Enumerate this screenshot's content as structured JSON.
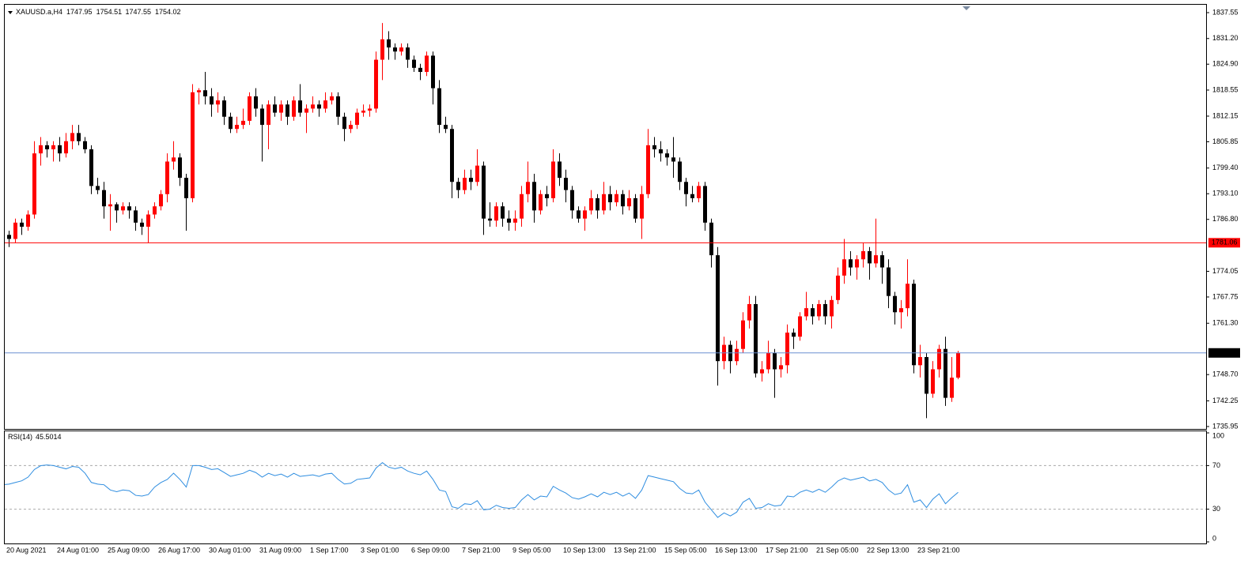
{
  "chart_data": {
    "type": "candlestick",
    "title": "XAUUSD.a,H4",
    "up_color": "#ff0000",
    "down_color": "#000000",
    "bid_color": "#6a8fd0",
    "ylim": [
      1735.36,
      1839.49
    ],
    "yticks": [
      {
        "value": 1837.55,
        "label": "1837.55"
      },
      {
        "value": 1831.2,
        "label": "1831.20"
      },
      {
        "value": 1824.9,
        "label": "1824.90"
      },
      {
        "value": 1818.55,
        "label": "1818.55"
      },
      {
        "value": 1812.15,
        "label": "1812.15"
      },
      {
        "value": 1805.85,
        "label": "1805.85"
      },
      {
        "value": 1799.4,
        "label": "1799.40"
      },
      {
        "value": 1793.1,
        "label": "1793.10"
      },
      {
        "value": 1786.8,
        "label": "1786.80"
      },
      {
        "value": 1774.05,
        "label": "1774.05"
      },
      {
        "value": 1767.75,
        "label": "1767.75"
      },
      {
        "value": 1761.3,
        "label": "1761.30"
      },
      {
        "value": 1748.7,
        "label": "1748.70"
      },
      {
        "value": 1742.25,
        "label": "1742.25"
      },
      {
        "value": 1735.95,
        "label": "1735.95"
      }
    ],
    "hlines": [
      {
        "value": 1781.06,
        "color": "#ff0000"
      }
    ],
    "categories": [
      null,
      "20 Aug 2021",
      null,
      null,
      null,
      null,
      null,
      null,
      null,
      "24 Aug 01:00",
      null,
      null,
      null,
      null,
      null,
      null,
      null,
      "25 Aug 09:00",
      null,
      null,
      null,
      null,
      null,
      null,
      null,
      "26 Aug 17:00",
      null,
      null,
      null,
      null,
      null,
      null,
      null,
      "30 Aug 01:00",
      null,
      null,
      null,
      null,
      null,
      null,
      null,
      "31 Aug 09:00",
      null,
      null,
      null,
      null,
      null,
      null,
      null,
      "1 Sep 17:00",
      null,
      null,
      null,
      null,
      null,
      null,
      null,
      "3 Sep 01:00",
      null,
      null,
      null,
      null,
      null,
      null,
      null,
      "6 Sep 09:00",
      null,
      null,
      null,
      null,
      null,
      null,
      null,
      "7 Sep 21:00",
      null,
      null,
      null,
      null,
      null,
      null,
      null,
      "9 Sep 05:00",
      null,
      null,
      null,
      null,
      null,
      null,
      null,
      "10 Sep 13:00",
      null,
      null,
      null,
      null,
      null,
      null,
      null,
      "13 Sep 21:00",
      null,
      null,
      null,
      null,
      null,
      null,
      null,
      "15 Sep 05:00",
      null,
      null,
      null,
      null,
      null,
      null,
      null,
      "16 Sep 13:00",
      null,
      null,
      null,
      null,
      null,
      null,
      null,
      "17 Sep 21:00",
      null,
      null,
      null,
      null,
      null,
      null,
      null,
      "21 Sep 05:00",
      null,
      null,
      null,
      null,
      null,
      null,
      null,
      "22 Sep 13:00",
      null,
      null,
      null,
      null,
      null,
      null,
      null,
      "23 Sep 21:00",
      null,
      null,
      null,
      null,
      null,
      null
    ],
    "ohlc": [
      [
        1779,
        1784,
        1776,
        1783
      ],
      [
        1783,
        1784,
        1780,
        1782
      ],
      [
        1782,
        1787,
        1781,
        1786
      ],
      [
        1786,
        1787,
        1783,
        1785
      ],
      [
        1785,
        1789,
        1784,
        1788
      ],
      [
        1788,
        1806,
        1787,
        1803
      ],
      [
        1803,
        1807,
        1800,
        1805
      ],
      [
        1805,
        1806,
        1802,
        1804
      ],
      [
        1804,
        1806,
        1801,
        1805
      ],
      [
        1805,
        1807,
        1801,
        1803
      ],
      [
        1803,
        1808,
        1802,
        1806
      ],
      [
        1806,
        1810,
        1804,
        1808
      ],
      [
        1808,
        1810,
        1805,
        1806
      ],
      [
        1806,
        1807,
        1803,
        1804
      ],
      [
        1804,
        1805,
        1793,
        1795
      ],
      [
        1795,
        1797,
        1793,
        1794
      ],
      [
        1794,
        1796,
        1787,
        1790
      ],
      [
        1790,
        1793,
        1784,
        1790.5
      ],
      [
        1790.5,
        1791,
        1786,
        1789
      ],
      [
        1789,
        1791,
        1788,
        1790
      ],
      [
        1790,
        1791,
        1787,
        1789
      ],
      [
        1789,
        1790,
        1784,
        1786
      ],
      [
        1786,
        1787,
        1783,
        1785
      ],
      [
        1785,
        1789,
        1781,
        1788
      ],
      [
        1788,
        1791,
        1787,
        1790
      ],
      [
        1790,
        1794,
        1789,
        1793
      ],
      [
        1793,
        1803,
        1791,
        1801
      ],
      [
        1801,
        1806,
        1799,
        1802
      ],
      [
        1802,
        1803,
        1795,
        1797
      ],
      [
        1797,
        1798,
        1784,
        1792
      ],
      [
        1792,
        1820,
        1791,
        1818
      ],
      [
        1818,
        1819,
        1815,
        1818.5
      ],
      [
        1818.5,
        1823,
        1815,
        1817
      ],
      [
        1817,
        1819,
        1812,
        1815
      ],
      [
        1815,
        1818,
        1813,
        1816
      ],
      [
        1816,
        1817,
        1810,
        1812
      ],
      [
        1812,
        1813,
        1808,
        1809
      ],
      [
        1809,
        1812,
        1808,
        1810
      ],
      [
        1810,
        1814,
        1809,
        1811
      ],
      [
        1811,
        1818,
        1810,
        1817
      ],
      [
        1817,
        1819,
        1812,
        1814
      ],
      [
        1814,
        1815,
        1801,
        1810
      ],
      [
        1810,
        1816,
        1804,
        1815
      ],
      [
        1815,
        1817,
        1812,
        1813
      ],
      [
        1813,
        1816,
        1811,
        1815
      ],
      [
        1815,
        1816,
        1810,
        1812
      ],
      [
        1812,
        1817,
        1811,
        1816
      ],
      [
        1816,
        1820,
        1812,
        1813
      ],
      [
        1813,
        1815,
        1808,
        1814
      ],
      [
        1814,
        1817,
        1813,
        1815
      ],
      [
        1815,
        1816,
        1812,
        1814
      ],
      [
        1814,
        1818,
        1813,
        1816
      ],
      [
        1816,
        1818,
        1815,
        1817
      ],
      [
        1817,
        1818,
        1810,
        1812
      ],
      [
        1812,
        1813,
        1806,
        1809
      ],
      [
        1809,
        1811,
        1808,
        1810
      ],
      [
        1810,
        1814,
        1809,
        1813
      ],
      [
        1813,
        1815,
        1812,
        1813.5
      ],
      [
        1813.5,
        1815,
        1812,
        1814
      ],
      [
        1814,
        1828,
        1813,
        1826
      ],
      [
        1826,
        1835,
        1821,
        1831
      ],
      [
        1831,
        1833,
        1826,
        1829
      ],
      [
        1829,
        1830,
        1826,
        1828
      ],
      [
        1828,
        1830,
        1827,
        1829
      ],
      [
        1829,
        1830,
        1824,
        1826
      ],
      [
        1826,
        1827,
        1823,
        1824
      ],
      [
        1824,
        1825,
        1821,
        1823
      ],
      [
        1823,
        1828,
        1822,
        1827
      ],
      [
        1827,
        1828,
        1815,
        1819
      ],
      [
        1819,
        1821,
        1808,
        1810
      ],
      [
        1810,
        1812,
        1808,
        1809
      ],
      [
        1809,
        1810,
        1792,
        1796
      ],
      [
        1796,
        1797,
        1792,
        1794
      ],
      [
        1794,
        1799,
        1793,
        1797
      ],
      [
        1797,
        1799,
        1794,
        1796
      ],
      [
        1796,
        1804,
        1795,
        1800
      ],
      [
        1800,
        1801,
        1783,
        1787
      ],
      [
        1787,
        1791,
        1785,
        1786.5
      ],
      [
        1786.5,
        1791,
        1785,
        1790
      ],
      [
        1790,
        1791,
        1785,
        1787
      ],
      [
        1787,
        1789,
        1784,
        1786
      ],
      [
        1786,
        1789,
        1784,
        1787
      ],
      [
        1787,
        1795,
        1785,
        1793
      ],
      [
        1793,
        1801,
        1791,
        1796
      ],
      [
        1796,
        1798,
        1786,
        1789
      ],
      [
        1789,
        1794,
        1788,
        1793
      ],
      [
        1793,
        1795,
        1790,
        1792
      ],
      [
        1792,
        1804,
        1791,
        1801
      ],
      [
        1801,
        1803,
        1795,
        1797
      ],
      [
        1797,
        1799,
        1791,
        1794
      ],
      [
        1794,
        1795,
        1787,
        1789
      ],
      [
        1789,
        1790,
        1786,
        1787
      ],
      [
        1787,
        1790,
        1784,
        1789
      ],
      [
        1789,
        1794,
        1788,
        1792
      ],
      [
        1792,
        1793,
        1787,
        1789
      ],
      [
        1789,
        1796,
        1788,
        1793
      ],
      [
        1793,
        1795,
        1789,
        1791
      ],
      [
        1791,
        1794,
        1790,
        1793
      ],
      [
        1793,
        1794,
        1788,
        1790
      ],
      [
        1790,
        1794,
        1789,
        1792
      ],
      [
        1792,
        1793,
        1786,
        1787
      ],
      [
        1787,
        1795,
        1782,
        1793
      ],
      [
        1793,
        1809,
        1792,
        1805
      ],
      [
        1805,
        1807,
        1802,
        1804
      ],
      [
        1804,
        1806,
        1801,
        1803
      ],
      [
        1803,
        1804,
        1800,
        1802
      ],
      [
        1802,
        1807,
        1797,
        1801
      ],
      [
        1801,
        1802,
        1794,
        1796
      ],
      [
        1796,
        1797,
        1790,
        1793
      ],
      [
        1793,
        1795,
        1791,
        1792
      ],
      [
        1792,
        1796,
        1791,
        1795
      ],
      [
        1795,
        1796,
        1784,
        1786
      ],
      [
        1786,
        1787,
        1775,
        1778
      ],
      [
        1778,
        1780,
        1746,
        1752
      ],
      [
        1752,
        1758,
        1750,
        1756
      ],
      [
        1756,
        1757,
        1749,
        1752
      ],
      [
        1752,
        1757,
        1751,
        1755
      ],
      [
        1755,
        1764,
        1754,
        1762
      ],
      [
        1762,
        1768,
        1760,
        1766
      ],
      [
        1766,
        1768,
        1748,
        1749
      ],
      [
        1749,
        1752,
        1747,
        1750
      ],
      [
        1750,
        1757,
        1749,
        1754
      ],
      [
        1754,
        1755,
        1743,
        1750
      ],
      [
        1750,
        1753,
        1748,
        1751
      ],
      [
        1751,
        1761,
        1749,
        1759
      ],
      [
        1759,
        1760,
        1755,
        1758
      ],
      [
        1758,
        1764,
        1757,
        1763
      ],
      [
        1763,
        1769,
        1762,
        1765
      ],
      [
        1765,
        1766,
        1761,
        1763
      ],
      [
        1763,
        1767,
        1762,
        1766
      ],
      [
        1766,
        1767,
        1761,
        1763
      ],
      [
        1763,
        1768,
        1760,
        1767
      ],
      [
        1767,
        1775,
        1766,
        1773
      ],
      [
        1773,
        1782,
        1771,
        1777
      ],
      [
        1777,
        1779,
        1773,
        1775
      ],
      [
        1775,
        1778,
        1772,
        1777
      ],
      [
        1777,
        1781,
        1775,
        1779
      ],
      [
        1779,
        1780,
        1772,
        1776
      ],
      [
        1776,
        1787,
        1775,
        1778
      ],
      [
        1778,
        1779,
        1771,
        1775
      ],
      [
        1775,
        1777,
        1765,
        1768
      ],
      [
        1768,
        1769,
        1761,
        1764
      ],
      [
        1764,
        1767,
        1760,
        1765
      ],
      [
        1765,
        1777,
        1763,
        1771
      ],
      [
        1771,
        1772,
        1749,
        1751
      ],
      [
        1751,
        1756,
        1748,
        1753
      ],
      [
        1753,
        1754,
        1738,
        1744
      ],
      [
        1744,
        1752,
        1743,
        1750
      ],
      [
        1750,
        1756,
        1748,
        1755
      ],
      [
        1755,
        1758,
        1741,
        1743
      ],
      [
        1743,
        1753,
        1742,
        1747.95
      ],
      [
        1747.95,
        1754.51,
        1747.55,
        1754.02
      ]
    ],
    "indicator": {
      "type": "line",
      "name": "RSI(14)",
      "color": "#2e8de0",
      "ylim": [
        0,
        100
      ],
      "yticks": [
        100,
        70,
        30,
        0
      ],
      "levels": [
        70,
        30
      ],
      "values": [
        52.4,
        53,
        54.5,
        56,
        59.4,
        66.4,
        69.9,
        70.6,
        70,
        68.5,
        67,
        69.2,
        68.5,
        63,
        54.5,
        53,
        52.4,
        47.6,
        46,
        47.6,
        46.9,
        42.7,
        42,
        43.4,
        50.3,
        54.5,
        57.3,
        63,
        57.3,
        50.3,
        70,
        70,
        68.5,
        66.4,
        67.1,
        63.6,
        60.1,
        61.5,
        62.9,
        65.7,
        63.6,
        59.4,
        62.9,
        60.8,
        62.2,
        59.4,
        62.9,
        60.1,
        60.8,
        61.5,
        60.1,
        62.2,
        62.9,
        57.3,
        53.1,
        53.8,
        57.3,
        58,
        58.7,
        67.8,
        72.7,
        68.5,
        67.1,
        68.5,
        65,
        62.9,
        61.5,
        65,
        57.3,
        47.6,
        46.2,
        32.2,
        30.8,
        35,
        34.3,
        37.8,
        29.4,
        30.1,
        33.6,
        31.5,
        30.8,
        31.5,
        38.5,
        43.4,
        38.5,
        42,
        41.3,
        51,
        47.6,
        44.8,
        40.6,
        39.2,
        41.3,
        44.1,
        41.3,
        45.5,
        43.4,
        45.5,
        42,
        44.8,
        39.9,
        47.6,
        60.8,
        59.4,
        58,
        56.6,
        55.2,
        49,
        44.8,
        44.1,
        47.6,
        36.4,
        29.4,
        22.4,
        26.6,
        23.8,
        27.3,
        36.4,
        39.9,
        30.8,
        31.5,
        35,
        32.9,
        33.6,
        42,
        41.3,
        45.5,
        47.6,
        45.5,
        48.3,
        45.5,
        50.3,
        55.9,
        58.7,
        56.6,
        58,
        59.4,
        55.9,
        57.3,
        54.5,
        47.6,
        43.4,
        44.8,
        52.4,
        36.4,
        38.5,
        31.5,
        39.2,
        44.1,
        35,
        40.6,
        45.5014
      ]
    }
  }
}
